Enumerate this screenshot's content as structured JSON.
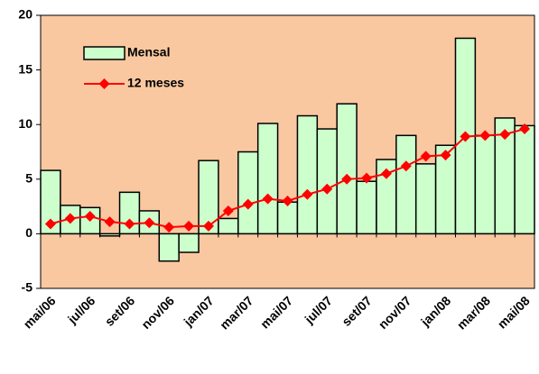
{
  "chart_data": {
    "type": "bar+line",
    "categories": [
      "mai/06",
      null,
      "jul/06",
      null,
      "set/06",
      null,
      "nov/06",
      null,
      "jan/07",
      null,
      "mar/07",
      null,
      "mai/07",
      null,
      "jul/07",
      null,
      "set/07",
      null,
      "nov/07",
      null,
      "jan/08",
      null,
      "mar/08",
      null,
      "mai/08"
    ],
    "series": [
      {
        "name": "Mensal",
        "type": "bar",
        "color": "#ccffcc",
        "values": [
          5.8,
          2.6,
          2.4,
          -0.2,
          3.8,
          2.1,
          -2.5,
          -1.7,
          6.7,
          1.4,
          7.5,
          10.1,
          2.9,
          10.8,
          9.6,
          11.9,
          4.8,
          6.8,
          9.0,
          6.4,
          8.1,
          17.9,
          9.0,
          10.6,
          9.9
        ]
      },
      {
        "name": "12 meses",
        "type": "line",
        "color": "#ff0000",
        "values": [
          0.9,
          1.4,
          1.6,
          1.1,
          0.9,
          1.0,
          0.6,
          0.7,
          0.7,
          2.1,
          2.7,
          3.2,
          3.0,
          3.6,
          4.1,
          5.0,
          5.1,
          5.5,
          6.2,
          7.1,
          7.2,
          8.9,
          9.0,
          9.1,
          9.6
        ]
      }
    ],
    "ylim": [
      -5,
      20
    ],
    "yticks": [
      -5,
      0,
      5,
      10,
      15,
      20
    ],
    "plot_background": "#fac8a0",
    "legend": "upper left"
  }
}
